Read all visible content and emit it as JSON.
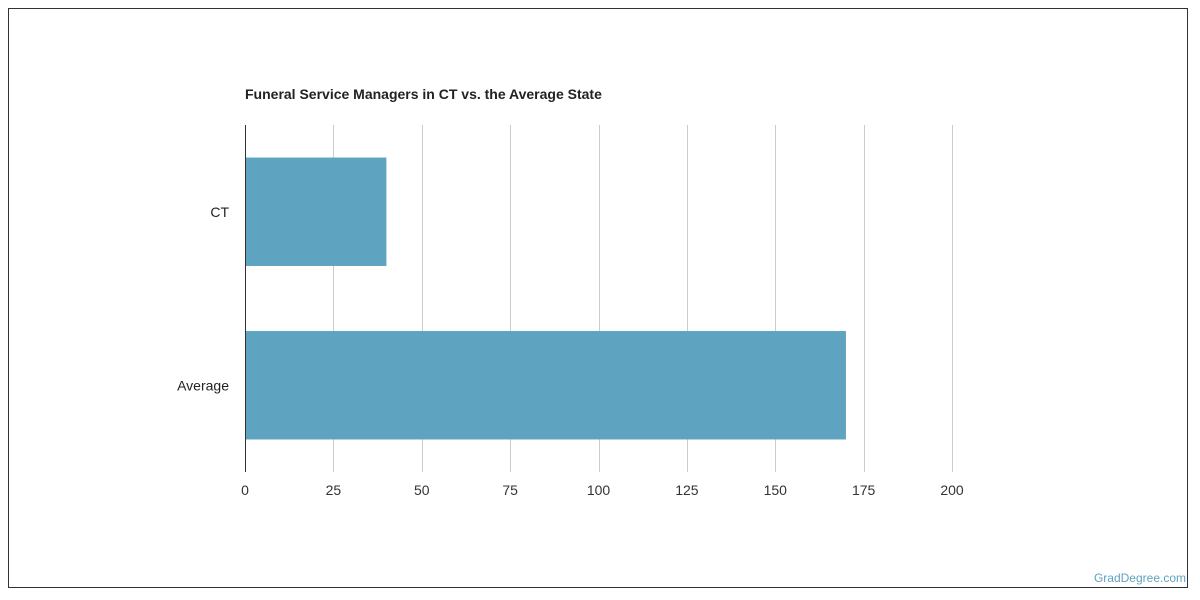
{
  "chart_data": {
    "type": "bar",
    "orientation": "horizontal",
    "title": "Funeral Service Managers in CT vs. the Average State",
    "categories": [
      "CT",
      "Average"
    ],
    "values": [
      40,
      170
    ],
    "xlim": [
      0,
      200
    ],
    "x_ticks": [
      0,
      25,
      50,
      75,
      100,
      125,
      150,
      175,
      200
    ],
    "xlabel": "",
    "ylabel": "",
    "grid": "vertical",
    "legend": "none",
    "bar_color": "#5ea3bf"
  },
  "watermark": "GradDegree.com"
}
